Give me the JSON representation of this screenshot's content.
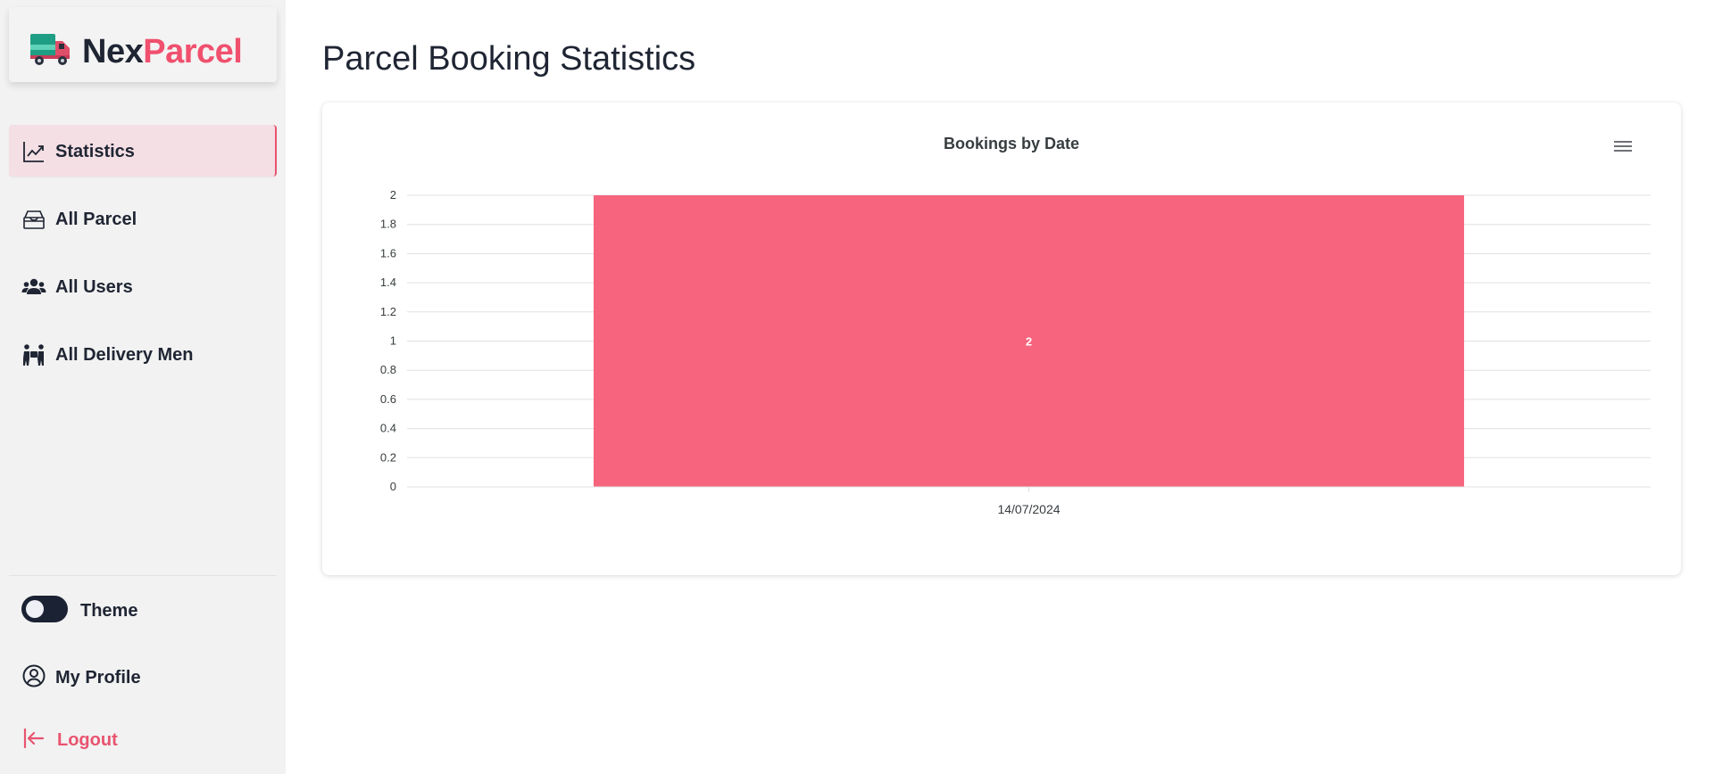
{
  "brand": {
    "name_part1": "Nex",
    "name_part2": "Parcel",
    "colors": {
      "dark": "#1f2533",
      "accent": "#f0506e"
    }
  },
  "sidebar": {
    "items": [
      {
        "label": "Statistics",
        "icon": "chart-line-icon",
        "active": true
      },
      {
        "label": "All Parcel",
        "icon": "box-open-icon",
        "active": false
      },
      {
        "label": "All Users",
        "icon": "users-icon",
        "active": false
      },
      {
        "label": "All Delivery Men",
        "icon": "delivery-men-icon",
        "active": false
      }
    ],
    "theme": {
      "label": "Theme",
      "dark_mode": true
    },
    "profile": {
      "label": "My Profile",
      "icon": "user-circle-icon"
    },
    "logout": {
      "label": "Logout",
      "icon": "logout-icon",
      "color": "#e8546f"
    }
  },
  "main": {
    "title": "Parcel Booking Statistics",
    "menu_icon": "hamburger-menu-icon"
  },
  "chart_data": {
    "type": "bar",
    "title": "Bookings by Date",
    "categories": [
      "14/07/2024"
    ],
    "values": [
      2
    ],
    "data_labels": [
      "2"
    ],
    "ylim": [
      0,
      2
    ],
    "yticks": [
      "0",
      "0.2",
      "0.4",
      "0.6",
      "0.8",
      "1",
      "1.2",
      "1.4",
      "1.6",
      "1.8",
      "2"
    ],
    "grid": true,
    "bar_color": "#f55c76"
  }
}
